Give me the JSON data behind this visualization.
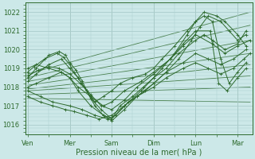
{
  "title": "Pression niveau de la mer( hPa )",
  "bg_color": "#cce8e8",
  "grid_color": "#aacccc",
  "line_color": "#2d6a2d",
  "ylim": [
    1015.5,
    1022.5
  ],
  "yticks": [
    1016,
    1017,
    1018,
    1019,
    1020,
    1021,
    1022
  ],
  "x_labels": [
    "Ven",
    "Mer",
    "Sam",
    "Dim",
    "Lun",
    "Mar"
  ],
  "x_ticks": [
    0,
    1,
    2,
    3,
    4,
    5
  ],
  "x_minor_ticks": [
    0.5,
    1.5,
    2.5,
    3.5,
    4.5
  ],
  "xlim": [
    -0.05,
    5.35
  ],
  "figsize": [
    3.2,
    2.0
  ],
  "dpi": 100,
  "straight_lines": {
    "x_start": 0.0,
    "x_end": 5.3,
    "starts_y": [
      1018.7,
      1018.5,
      1018.3,
      1018.1,
      1017.9,
      1017.8,
      1017.6,
      1017.4
    ],
    "ends_y": [
      1022.0,
      1021.3,
      1020.5,
      1019.8,
      1019.2,
      1018.6,
      1018.0,
      1017.2
    ]
  },
  "wavy_lines": [
    {
      "x": [
        0.0,
        0.15,
        0.4,
        0.7,
        0.85,
        1.0,
        1.1,
        1.2,
        1.4,
        1.6,
        1.8,
        2.0,
        2.2,
        2.5,
        2.8,
        3.0,
        3.2,
        3.5,
        3.8,
        4.0,
        4.2,
        4.4,
        4.6,
        4.8,
        5.0,
        5.2
      ],
      "y": [
        1018.8,
        1019.1,
        1019.5,
        1019.8,
        1019.6,
        1019.2,
        1018.8,
        1018.5,
        1017.8,
        1017.2,
        1017.5,
        1017.8,
        1018.2,
        1018.5,
        1018.7,
        1019.0,
        1019.5,
        1020.2,
        1021.0,
        1021.5,
        1021.8,
        1021.5,
        1019.5,
        1018.2,
        1018.8,
        1019.3
      ]
    },
    {
      "x": [
        0.0,
        0.2,
        0.5,
        0.75,
        0.9,
        1.0,
        1.15,
        1.3,
        1.5,
        1.75,
        2.0,
        2.2,
        2.5,
        2.75,
        3.0,
        3.2,
        3.5,
        3.8,
        4.0,
        4.2,
        4.5,
        4.7,
        5.0,
        5.2
      ],
      "y": [
        1018.5,
        1019.0,
        1019.7,
        1019.9,
        1019.7,
        1019.3,
        1018.9,
        1018.3,
        1017.4,
        1016.8,
        1016.3,
        1017.0,
        1017.5,
        1018.0,
        1018.5,
        1019.0,
        1019.8,
        1020.8,
        1021.5,
        1022.0,
        1021.8,
        1021.5,
        1020.8,
        1020.2
      ]
    },
    {
      "x": [
        0.0,
        0.2,
        0.5,
        0.8,
        1.0,
        1.2,
        1.4,
        1.6,
        1.8,
        2.0,
        2.3,
        2.6,
        3.0,
        3.3,
        3.6,
        3.9,
        4.1,
        4.3,
        4.6,
        4.8,
        5.0,
        5.2
      ],
      "y": [
        1018.3,
        1018.7,
        1019.2,
        1019.5,
        1019.0,
        1018.5,
        1017.8,
        1017.0,
        1016.5,
        1016.2,
        1016.8,
        1017.5,
        1018.2,
        1018.8,
        1019.5,
        1020.5,
        1021.2,
        1021.8,
        1021.5,
        1021.0,
        1020.5,
        1020.8
      ]
    },
    {
      "x": [
        0.0,
        0.2,
        0.5,
        0.8,
        1.0,
        1.2,
        1.5,
        1.8,
        2.0,
        2.3,
        2.7,
        3.0,
        3.3,
        3.6,
        4.0,
        4.2,
        4.4,
        4.7,
        5.0,
        5.2
      ],
      "y": [
        1018.0,
        1018.2,
        1018.5,
        1018.8,
        1018.5,
        1017.8,
        1017.0,
        1016.5,
        1016.3,
        1017.0,
        1017.8,
        1018.5,
        1019.0,
        1019.8,
        1020.5,
        1020.8,
        1020.5,
        1020.0,
        1020.3,
        1021.0
      ]
    },
    {
      "x": [
        0.0,
        0.3,
        0.6,
        1.0,
        1.3,
        1.6,
        1.9,
        2.1,
        2.4,
        2.8,
        3.0,
        3.3,
        3.7,
        4.0,
        4.3,
        4.6,
        4.9,
        5.2
      ],
      "y": [
        1017.8,
        1017.5,
        1017.2,
        1017.0,
        1016.8,
        1016.5,
        1016.3,
        1016.5,
        1017.2,
        1017.8,
        1018.2,
        1018.8,
        1019.3,
        1019.8,
        1019.5,
        1019.2,
        1019.5,
        1020.0
      ]
    },
    {
      "x": [
        0.0,
        0.3,
        0.6,
        0.9,
        1.1,
        1.4,
        1.7,
        2.0,
        2.3,
        2.6,
        3.0,
        3.3,
        3.7,
        4.0,
        4.3,
        4.6,
        4.9,
        5.15,
        5.3
      ],
      "y": [
        1017.5,
        1017.2,
        1017.0,
        1016.8,
        1016.7,
        1016.5,
        1016.3,
        1016.5,
        1017.0,
        1017.5,
        1018.0,
        1018.5,
        1019.0,
        1019.3,
        1019.0,
        1018.7,
        1019.0,
        1019.5,
        1019.8
      ]
    },
    {
      "x": [
        0.0,
        0.2,
        0.5,
        0.8,
        1.0,
        1.2,
        1.5,
        1.8,
        2.0,
        2.3,
        2.7,
        3.0,
        3.4,
        3.7,
        4.0,
        4.4,
        4.7,
        5.0,
        5.3
      ],
      "y": [
        1019.0,
        1019.2,
        1019.0,
        1018.8,
        1018.5,
        1018.0,
        1017.5,
        1017.0,
        1017.2,
        1017.8,
        1018.3,
        1018.8,
        1019.5,
        1020.2,
        1020.8,
        1020.3,
        1019.8,
        1020.2,
        1020.5
      ]
    },
    {
      "x": [
        0.0,
        0.25,
        0.5,
        0.75,
        1.0,
        1.25,
        1.5,
        1.75,
        2.0,
        2.3,
        2.6,
        3.0,
        3.4,
        3.7,
        4.0,
        4.35,
        4.55,
        4.75,
        5.0,
        5.2
      ],
      "y": [
        1018.6,
        1018.9,
        1019.1,
        1019.0,
        1018.7,
        1018.2,
        1017.6,
        1017.0,
        1016.8,
        1017.3,
        1018.0,
        1018.7,
        1019.5,
        1020.3,
        1021.0,
        1021.0,
        1018.2,
        1017.8,
        1018.5,
        1019.0
      ]
    }
  ]
}
